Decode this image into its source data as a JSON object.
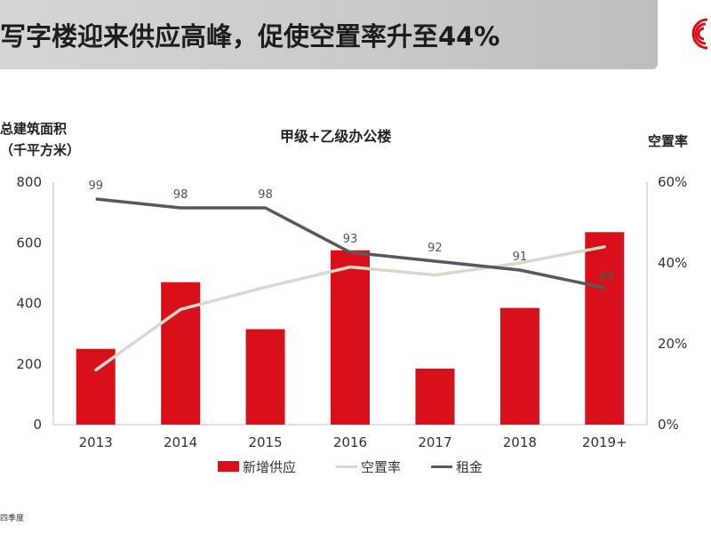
{
  "header": {
    "title": "写字楼迎来供应高峰，促使空置率升至44%"
  },
  "chart_data": {
    "type": "bar",
    "title": "甲级+乙级办公楼",
    "ylabel": "总建筑面积\n（千平方米）",
    "y2label": "空置率",
    "categories": [
      "2013",
      "2014",
      "2015",
      "2016",
      "2017",
      "2018",
      "2019+"
    ],
    "ylim": [
      0,
      800
    ],
    "yticks": [
      0,
      200,
      400,
      600,
      800
    ],
    "y2lim": [
      0,
      60
    ],
    "y2ticks": [
      "0%",
      "20%",
      "40%",
      "60%"
    ],
    "series": [
      {
        "name": "新增供应",
        "type": "bar",
        "color": "#d9101a",
        "values": [
          250,
          470,
          315,
          575,
          185,
          385,
          635
        ]
      },
      {
        "name": "空置率",
        "type": "line",
        "axis": "right",
        "color": "#d8d8cc",
        "values": [
          13.5,
          28.5,
          34,
          39,
          37,
          40,
          44
        ]
      },
      {
        "name": "租金",
        "type": "line",
        "axis": "right-index",
        "color": "#555a5e",
        "values": [
          99,
          98,
          98,
          93,
          92,
          91,
          89
        ]
      }
    ],
    "legend_position": "bottom",
    "grid": false
  },
  "footnote": "四季度"
}
